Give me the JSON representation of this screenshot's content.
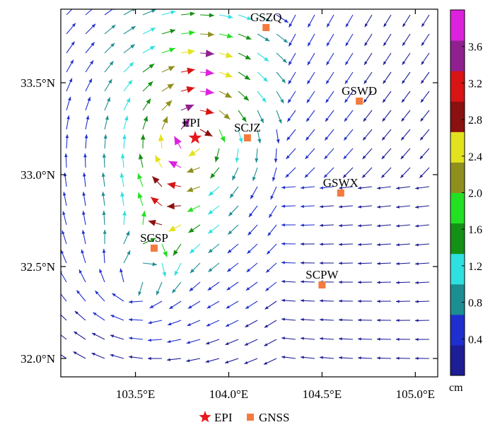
{
  "chart_data": {
    "type": "vector-field",
    "title": "",
    "xlabel": "",
    "ylabel": "",
    "xlim": [
      103.1,
      105.12
    ],
    "ylim": [
      31.9,
      33.9
    ],
    "x_ticks": [
      {
        "value": 103.5,
        "label": "103.5°E"
      },
      {
        "value": 104.0,
        "label": "104.0°E"
      },
      {
        "value": 104.5,
        "label": "104.5°E"
      },
      {
        "value": 105.0,
        "label": "105.0°E"
      }
    ],
    "y_ticks": [
      {
        "value": 32.0,
        "label": "32.0°N"
      },
      {
        "value": 32.5,
        "label": "32.5°N"
      },
      {
        "value": 33.0,
        "label": "33.0°N"
      },
      {
        "value": 33.5,
        "label": "33.5°N"
      }
    ],
    "epicenter": {
      "lon": 103.82,
      "lat": 33.2,
      "label": "EPI"
    },
    "stations": [
      {
        "name": "GSZQ",
        "lon": 104.2,
        "lat": 33.8
      },
      {
        "name": "GSWD",
        "lon": 104.7,
        "lat": 33.4
      },
      {
        "name": "SCJZ",
        "lon": 104.1,
        "lat": 33.2
      },
      {
        "name": "GSWX",
        "lon": 104.6,
        "lat": 32.9
      },
      {
        "name": "SCSP",
        "lon": 103.6,
        "lat": 32.6
      },
      {
        "name": "SCPW",
        "lon": 104.5,
        "lat": 32.4
      }
    ],
    "colorbar": {
      "unit": "cm",
      "min": 0.0,
      "max": 4.0,
      "tick_values": [
        0.4,
        0.8,
        1.2,
        1.6,
        2.0,
        2.4,
        2.8,
        3.2,
        3.6
      ],
      "tick_labels": [
        "0.4",
        "0.8",
        "1.2",
        "1.6",
        "2.0",
        "2.4",
        "2.8",
        "3.2",
        "3.6"
      ],
      "colors": [
        "#1d1d96",
        "#1f2fcf",
        "#1b8e92",
        "#2fe0e0",
        "#149014",
        "#22e022",
        "#8f8f1d",
        "#e2e21f",
        "#8b1010",
        "#d81414",
        "#902090",
        "#dd22dd"
      ]
    },
    "legend": {
      "placement": "bottom-center",
      "items": [
        {
          "label": "EPI",
          "symbol": "star",
          "color": "#e8181e"
        },
        {
          "label": "GNSS",
          "symbol": "square",
          "color": "#f47a3e"
        }
      ]
    },
    "grid": false
  }
}
